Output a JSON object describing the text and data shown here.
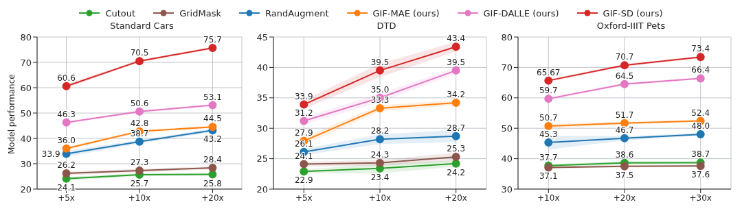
{
  "chart_data": [
    {
      "type": "line",
      "title": "Standard Cars",
      "ylabel": "Model performance",
      "categories": [
        "+5x",
        "+10x",
        "+20x"
      ],
      "ylim": [
        20,
        80
      ],
      "yticks": [
        20,
        30,
        40,
        50,
        60,
        70,
        80
      ],
      "grid": true,
      "legend": "top",
      "marker": "circle",
      "line_style": "solid",
      "series": [
        {
          "name": "Cutout",
          "color": "#2ca02c",
          "values": [
            24.1,
            25.7,
            25.8
          ],
          "value_labels": [
            "24.1",
            "25.7",
            "25.8"
          ],
          "lower": [
            23.4,
            25.1,
            25.3
          ],
          "upper": [
            24.8,
            26.3,
            26.3
          ]
        },
        {
          "name": "GridMask",
          "color": "#8c564b",
          "values": [
            26.2,
            27.3,
            28.4
          ],
          "value_labels": [
            "26.2",
            "27.3",
            "28.4"
          ],
          "lower": [
            25.5,
            26.6,
            27.8
          ],
          "upper": [
            26.9,
            28.0,
            29.0
          ]
        },
        {
          "name": "RandAugment",
          "color": "#1f77b4",
          "values": [
            33.9,
            38.7,
            43.2
          ],
          "value_labels": [
            "33.9",
            "38.7",
            "43.2"
          ],
          "lower": [
            32.7,
            38.0,
            42.5
          ],
          "upper": [
            35.1,
            39.4,
            43.9
          ]
        },
        {
          "name": "GIF-MAE (ours)",
          "color": "#ff7f0e",
          "values": [
            36.0,
            42.8,
            44.5
          ],
          "value_labels": [
            "36.0",
            "42.8",
            "44.5"
          ],
          "lower": [
            35.3,
            42.3,
            44.0
          ],
          "upper": [
            36.7,
            43.3,
            45.0
          ]
        },
        {
          "name": "GIF-DALLE (ours)",
          "color": "#e377c2",
          "values": [
            46.3,
            50.6,
            53.1
          ],
          "value_labels": [
            "46.3",
            "50.6",
            "53.1"
          ],
          "lower": [
            45.8,
            50.1,
            52.6
          ],
          "upper": [
            46.8,
            51.1,
            53.6
          ]
        },
        {
          "name": "GIF-SD (ours)",
          "color": "#d62728",
          "values": [
            60.6,
            70.5,
            75.7
          ],
          "value_labels": [
            "60.6",
            "70.5",
            "75.7"
          ],
          "lower": [
            59.8,
            70.0,
            75.2
          ],
          "upper": [
            61.4,
            71.0,
            76.2
          ]
        }
      ]
    },
    {
      "type": "line",
      "title": "DTD",
      "categories": [
        "+5x",
        "+10x",
        "+20x"
      ],
      "ylim": [
        20,
        45
      ],
      "yticks": [
        20,
        25,
        30,
        35,
        40,
        45
      ],
      "grid": true,
      "marker": "circle",
      "line_style": "solid",
      "series": [
        {
          "color": "#2ca02c",
          "values": [
            22.9,
            23.4,
            24.2
          ],
          "value_labels": [
            "22.9",
            "23.4",
            "24.2"
          ],
          "lower": [
            22.6,
            22.6,
            23.7
          ],
          "upper": [
            23.2,
            24.2,
            24.7
          ]
        },
        {
          "color": "#8c564b",
          "values": [
            24.1,
            24.3,
            25.3
          ],
          "value_labels": [
            "24.1",
            "24.3",
            "25.3"
          ],
          "lower": [
            23.7,
            23.8,
            24.6
          ],
          "upper": [
            24.5,
            24.8,
            26.0
          ]
        },
        {
          "color": "#1f77b4",
          "values": [
            26.1,
            28.2,
            28.7
          ],
          "value_labels": [
            "26.1",
            "28.2",
            "28.7"
          ],
          "lower": [
            25.6,
            27.4,
            27.7
          ],
          "upper": [
            26.6,
            29.0,
            29.7
          ]
        },
        {
          "color": "#ff7f0e",
          "values": [
            27.9,
            33.3,
            34.2
          ],
          "value_labels": [
            "27.9",
            "33.3",
            "34.2"
          ],
          "lower": [
            27.3,
            32.8,
            33.8
          ],
          "upper": [
            28.5,
            33.8,
            34.6
          ]
        },
        {
          "color": "#e377c2",
          "values": [
            31.2,
            35.0,
            39.5
          ],
          "value_labels": [
            "31.2",
            "35.0",
            "39.5"
          ],
          "lower": [
            30.6,
            34.3,
            39.0
          ],
          "upper": [
            31.8,
            35.7,
            40.0
          ]
        },
        {
          "color": "#d62728",
          "values": [
            33.9,
            39.5,
            43.4
          ],
          "value_labels": [
            "33.9",
            "39.5",
            "43.4"
          ],
          "lower": [
            33.2,
            38.4,
            42.6
          ],
          "upper": [
            34.6,
            40.6,
            44.2
          ]
        }
      ]
    },
    {
      "type": "line",
      "title": "Oxford-IIIT Pets",
      "categories": [
        "+10x",
        "+20x",
        "+30x"
      ],
      "ylim": [
        30,
        80
      ],
      "yticks": [
        30,
        40,
        50,
        60,
        70,
        80
      ],
      "grid": true,
      "marker": "circle",
      "line_style": "solid",
      "series": [
        {
          "color": "#2ca02c",
          "values": [
            37.7,
            38.6,
            38.7
          ],
          "value_labels": [
            "37.7",
            "38.6",
            "38.7"
          ],
          "lower": [
            37.2,
            38.0,
            38.2
          ],
          "upper": [
            38.2,
            39.2,
            39.2
          ]
        },
        {
          "color": "#8c564b",
          "values": [
            37.1,
            37.5,
            37.6
          ],
          "value_labels": [
            "37.1",
            "37.5",
            "37.6"
          ],
          "lower": [
            36.7,
            37.1,
            37.2
          ],
          "upper": [
            37.5,
            37.9,
            38.0
          ]
        },
        {
          "color": "#1f77b4",
          "values": [
            45.3,
            46.7,
            48.0
          ],
          "value_labels": [
            "45.3",
            "46.7",
            "48.0"
          ],
          "lower": [
            43.0,
            46.0,
            47.6
          ],
          "upper": [
            47.5,
            47.4,
            48.4
          ]
        },
        {
          "color": "#ff7f0e",
          "values": [
            50.7,
            51.7,
            52.4
          ],
          "value_labels": [
            "50.7",
            "51.7",
            "52.4"
          ],
          "lower": [
            50.0,
            51.2,
            52.0
          ],
          "upper": [
            51.4,
            52.2,
            52.8
          ]
        },
        {
          "color": "#e377c2",
          "values": [
            59.7,
            64.5,
            66.4
          ],
          "value_labels": [
            "59.7",
            "64.5",
            "66.4"
          ],
          "lower": [
            59.2,
            64.0,
            66.0
          ],
          "upper": [
            60.2,
            65.0,
            66.8
          ]
        },
        {
          "color": "#d62728",
          "values": [
            65.67,
            70.7,
            73.4
          ],
          "value_labels": [
            "65.67",
            "70.7",
            "73.4"
          ],
          "lower": [
            65.2,
            70.3,
            73.0
          ],
          "upper": [
            66.1,
            71.1,
            73.8
          ]
        }
      ]
    }
  ]
}
